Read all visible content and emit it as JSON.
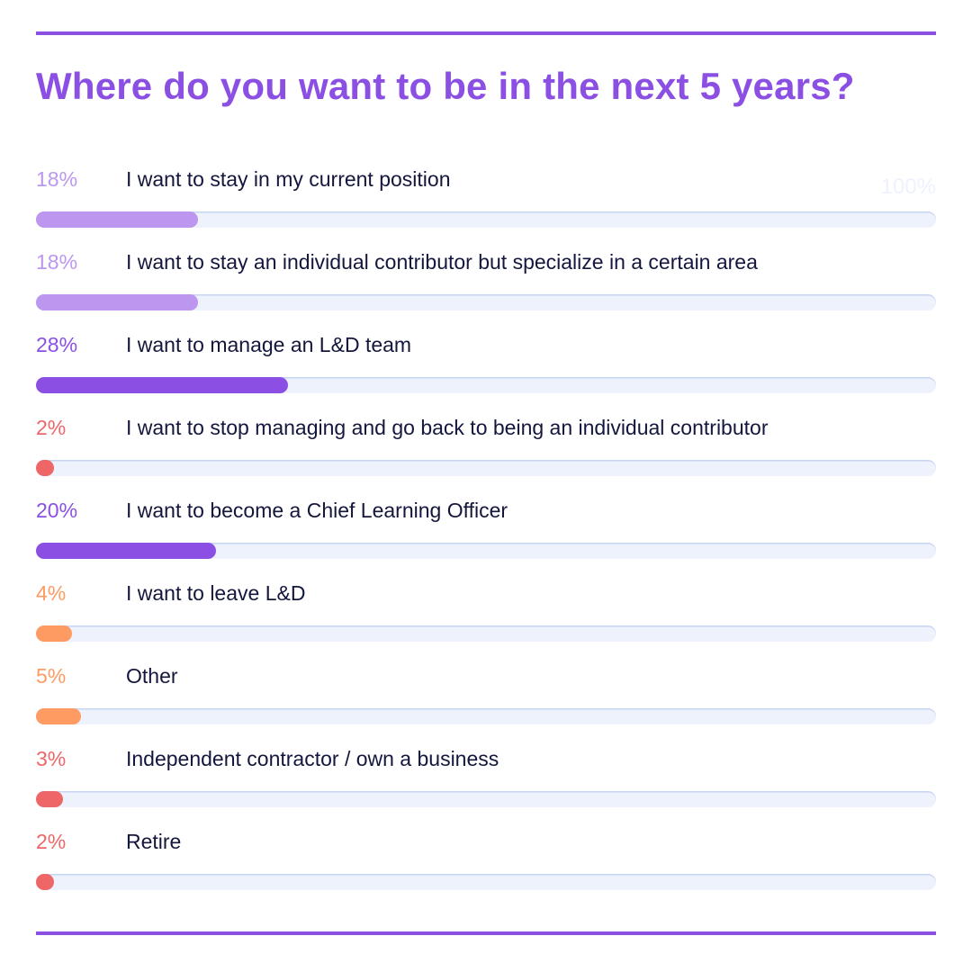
{
  "header": {
    "title": "Where do you want to be in the next 5 years?",
    "scale_max_label": "100%"
  },
  "colors": {
    "accent": "#8b4fe3",
    "light_purple": "#bc96ef",
    "orange": "#fd9b62",
    "red": "#ef6667",
    "track": "#edf2fd",
    "text": "#14173d"
  },
  "rows": [
    {
      "pct": "18%",
      "label": "I want to stay in my current position",
      "value": 18,
      "color": "#bc96ef"
    },
    {
      "pct": "18%",
      "label": "I want to stay an individual contributor but specialize in a certain area",
      "value": 18,
      "color": "#bc96ef"
    },
    {
      "pct": "28%",
      "label": "I want to manage an L&D team",
      "value": 28,
      "color": "#8b4fe3"
    },
    {
      "pct": "2%",
      "label": "I want to stop managing and go back to being an individual contributor",
      "value": 2,
      "color": "#ef6667"
    },
    {
      "pct": "20%",
      "label": "I want to become a Chief Learning Officer",
      "value": 20,
      "color": "#8b4fe3"
    },
    {
      "pct": "4%",
      "label": "I want to leave L&D",
      "value": 4,
      "color": "#fd9b62"
    },
    {
      "pct": "5%",
      "label": "Other",
      "value": 5,
      "color": "#fd9b62"
    },
    {
      "pct": "3%",
      "label": "Independent contractor / own a business",
      "value": 3,
      "color": "#ef6667"
    },
    {
      "pct": "2%",
      "label": "Retire",
      "value": 2,
      "color": "#ef6667"
    }
  ],
  "chart_data": {
    "type": "bar",
    "orientation": "horizontal",
    "title": "Where do you want to be in the next 5 years?",
    "categories": [
      "I want to stay in my current position",
      "I want to stay an individual contributor but specialize in a certain area",
      "I want to manage an L&D team",
      "I want to stop managing and go back to being an individual contributor",
      "I want to become a Chief Learning Officer",
      "I want to leave L&D",
      "Other",
      "Independent contractor / own a business",
      "Retire"
    ],
    "values": [
      18,
      18,
      28,
      2,
      20,
      4,
      5,
      3,
      2
    ],
    "unit": "%",
    "xlim": [
      0,
      100
    ],
    "xlabel": "",
    "ylabel": "",
    "grid": false,
    "legend": null
  }
}
